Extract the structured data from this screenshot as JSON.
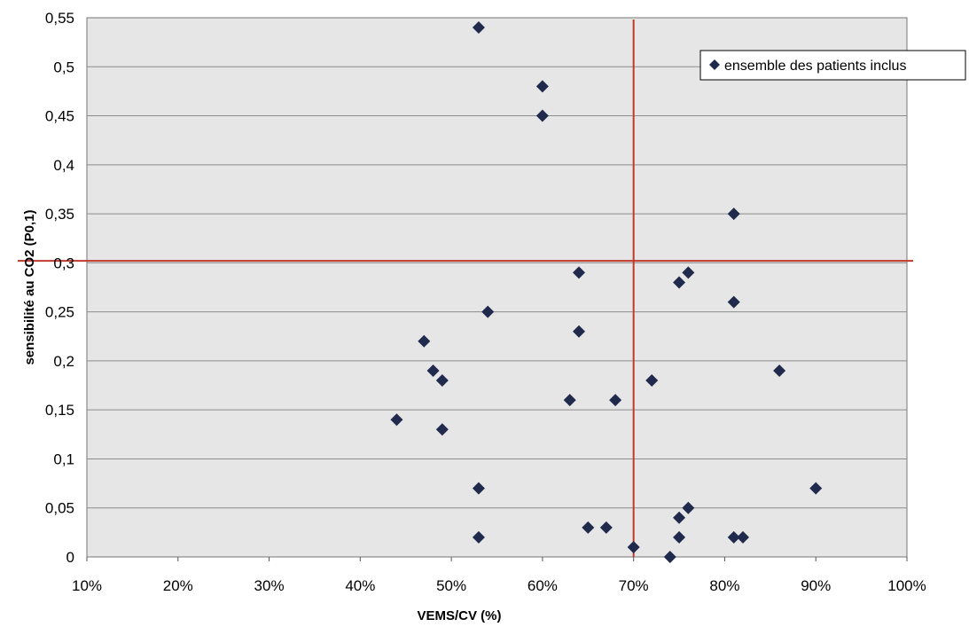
{
  "chart_data": {
    "type": "scatter",
    "title": "",
    "xlabel": "VEMS/CV  (%)",
    "ylabel": "sensibilité au CO2 (P0,1)",
    "xlim": [
      10,
      100
    ],
    "ylim": [
      0,
      0.55
    ],
    "x_ticks": [
      "10%",
      "20%",
      "30%",
      "40%",
      "50%",
      "60%",
      "70%",
      "80%",
      "90%",
      "100%"
    ],
    "y_ticks": [
      "0",
      "0,05",
      "0,1",
      "0,15",
      "0,2",
      "0,25",
      "0,3",
      "0,35",
      "0,4",
      "0,45",
      "0,5",
      "0,55"
    ],
    "grid": "horizontal",
    "legend_position": "top-right",
    "colors": {
      "plot_background": "#e6e6e6",
      "marker": "#1f2a4d",
      "threshold_lines": "#c0392b",
      "gridline": "#8c8c8c"
    },
    "series": [
      {
        "name": "ensemble des patients inclus",
        "marker": "diamond",
        "points": [
          {
            "x": 53,
            "y": 0.54
          },
          {
            "x": 60,
            "y": 0.48
          },
          {
            "x": 60,
            "y": 0.45
          },
          {
            "x": 81,
            "y": 0.35
          },
          {
            "x": 64,
            "y": 0.29
          },
          {
            "x": 76,
            "y": 0.29
          },
          {
            "x": 75,
            "y": 0.28
          },
          {
            "x": 81,
            "y": 0.26
          },
          {
            "x": 54,
            "y": 0.25
          },
          {
            "x": 64,
            "y": 0.23
          },
          {
            "x": 47,
            "y": 0.22
          },
          {
            "x": 48,
            "y": 0.19
          },
          {
            "x": 86,
            "y": 0.19
          },
          {
            "x": 49,
            "y": 0.18
          },
          {
            "x": 72,
            "y": 0.18
          },
          {
            "x": 63,
            "y": 0.16
          },
          {
            "x": 68,
            "y": 0.16
          },
          {
            "x": 44,
            "y": 0.14
          },
          {
            "x": 49,
            "y": 0.13
          },
          {
            "x": 53,
            "y": 0.07
          },
          {
            "x": 90,
            "y": 0.07
          },
          {
            "x": 76,
            "y": 0.05
          },
          {
            "x": 75,
            "y": 0.04
          },
          {
            "x": 65,
            "y": 0.03
          },
          {
            "x": 67,
            "y": 0.03
          },
          {
            "x": 53,
            "y": 0.02
          },
          {
            "x": 75,
            "y": 0.02
          },
          {
            "x": 81,
            "y": 0.02
          },
          {
            "x": 82,
            "y": 0.02
          },
          {
            "x": 70,
            "y": 0.01
          },
          {
            "x": 74,
            "y": 0.0
          }
        ]
      }
    ],
    "reference_lines": [
      {
        "orientation": "vertical",
        "x": 70
      },
      {
        "orientation": "horizontal",
        "y": 0.302
      }
    ]
  }
}
